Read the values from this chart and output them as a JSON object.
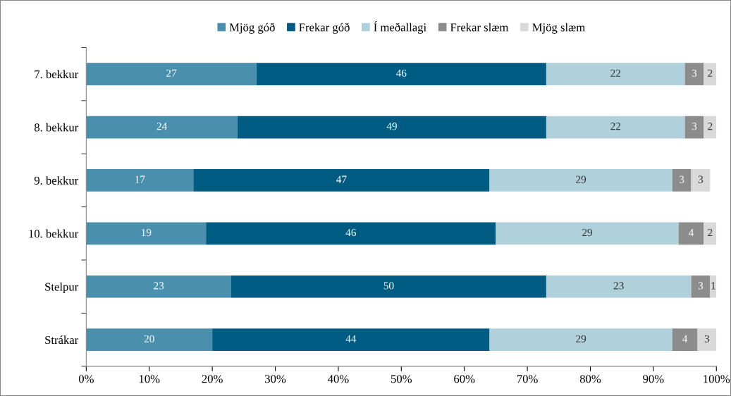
{
  "chart_data": {
    "type": "bar",
    "orientation": "horizontal",
    "stacked": true,
    "data_labels": true,
    "legend": "top",
    "grid": false,
    "categories": [
      "7. bekkur",
      "8. bekkur",
      "9. bekkur",
      "10. bekkur",
      "Stelpur",
      "Strákar"
    ],
    "series": [
      {
        "name": "Mjög góð",
        "color": "#4a8fad",
        "values": [
          27,
          24,
          17,
          19,
          23,
          20
        ]
      },
      {
        "name": "Frekar góð",
        "color": "#005b82",
        "values": [
          46,
          49,
          47,
          46,
          50,
          44
        ]
      },
      {
        "name": "Í meðallagi",
        "color": "#b0d0dc",
        "values": [
          22,
          22,
          29,
          29,
          23,
          29
        ]
      },
      {
        "name": "Frekar slæm",
        "color": "#8c8c8c",
        "values": [
          3,
          3,
          3,
          4,
          3,
          4
        ]
      },
      {
        "name": "Mjög slæm",
        "color": "#d9d9d9",
        "values": [
          2,
          2,
          3,
          2,
          1,
          3
        ]
      }
    ],
    "xlim": [
      0,
      100
    ],
    "xticks": [
      {
        "value": 0,
        "label": "0%"
      },
      {
        "value": 10,
        "label": "10%"
      },
      {
        "value": 20,
        "label": "20%"
      },
      {
        "value": 30,
        "label": "30%"
      },
      {
        "value": 40,
        "label": "40%"
      },
      {
        "value": 50,
        "label": "50%"
      },
      {
        "value": 60,
        "label": "60%"
      },
      {
        "value": 70,
        "label": "70%"
      },
      {
        "value": 80,
        "label": "80%"
      },
      {
        "value": 90,
        "label": "90%"
      },
      {
        "value": 100,
        "label": "100%"
      }
    ]
  }
}
